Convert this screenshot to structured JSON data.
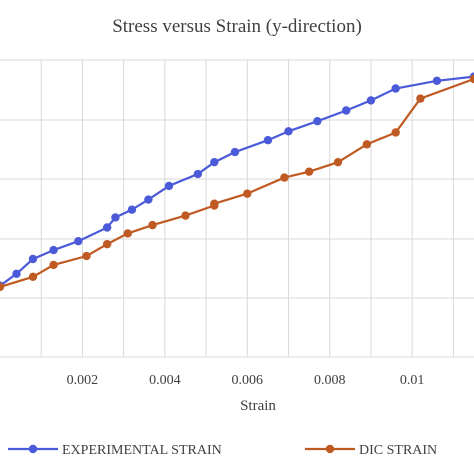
{
  "chart_data": {
    "type": "line",
    "title": "Stress versus Strain (y-direction)",
    "xlabel": "Strain",
    "ylabel": "",
    "x_ticks": [
      "0.002",
      "0.004",
      "0.006",
      "0.008",
      "0.01",
      "0.01"
    ],
    "xlim": [
      0,
      0.0115
    ],
    "ylim": [
      0,
      5
    ],
    "grid": true,
    "legend_position": "bottom",
    "series": [
      {
        "name": "EXPERIMENTAL STRAIN",
        "color": "#4a5ad8",
        "x": [
          0.0,
          0.0004,
          0.0008,
          0.0013,
          0.0019,
          0.0026,
          0.0028,
          0.0032,
          0.0036,
          0.0041,
          0.0048,
          0.0052,
          0.0057,
          0.0065,
          0.007,
          0.0077,
          0.0084,
          0.009,
          0.0096,
          0.0106,
          0.0115
        ],
        "y": [
          1.2,
          1.4,
          1.65,
          1.8,
          1.95,
          2.18,
          2.35,
          2.48,
          2.65,
          2.88,
          3.08,
          3.28,
          3.45,
          3.65,
          3.8,
          3.97,
          4.15,
          4.32,
          4.52,
          4.65,
          4.72
        ]
      },
      {
        "name": "DIC STRAIN",
        "color": "#c05a23",
        "x": [
          0.0,
          0.0008,
          0.0013,
          0.0021,
          0.0026,
          0.0031,
          0.0037,
          0.0045,
          0.0052,
          0.0052,
          0.006,
          0.0069,
          0.0075,
          0.0082,
          0.0089,
          0.0096,
          0.0102,
          0.0115
        ],
        "y": [
          1.18,
          1.35,
          1.55,
          1.7,
          1.9,
          2.08,
          2.22,
          2.38,
          2.55,
          2.58,
          2.75,
          3.02,
          3.12,
          3.28,
          3.58,
          3.78,
          4.35,
          4.68
        ]
      }
    ]
  }
}
